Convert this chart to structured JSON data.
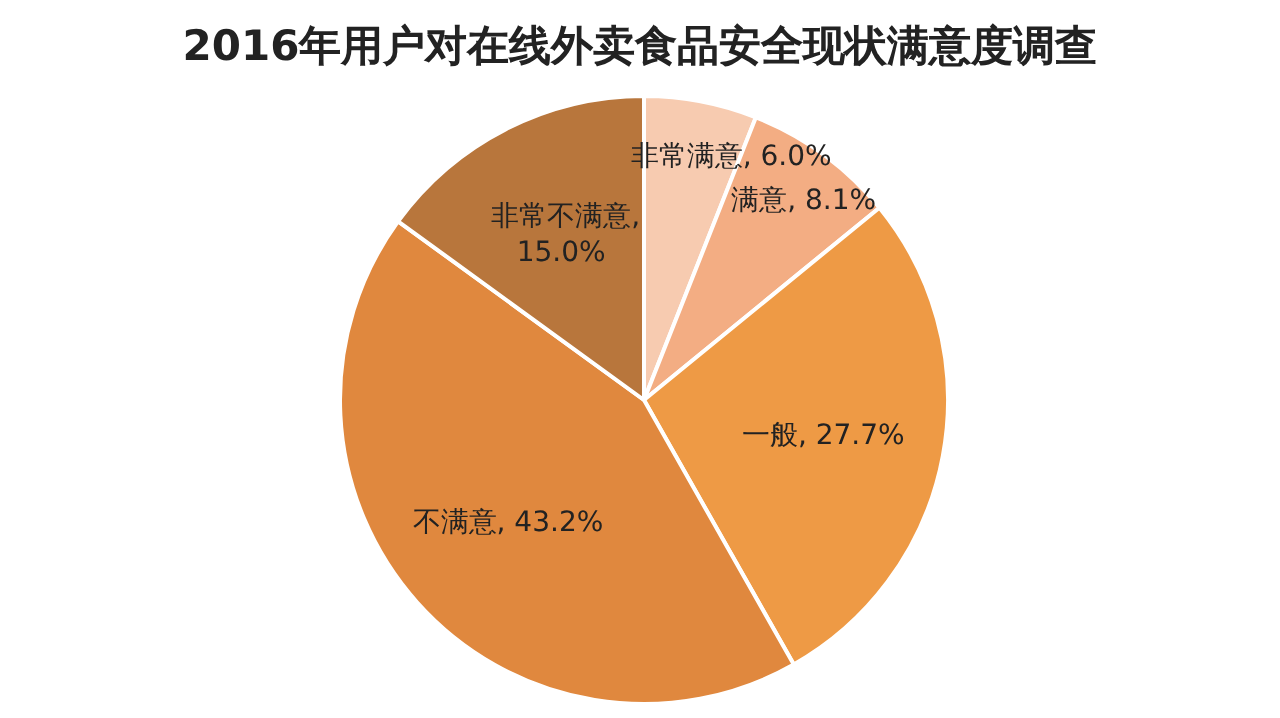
{
  "chart_data": {
    "type": "pie",
    "title": "2016年用户对在线外卖食品安全现状满意度调查",
    "categories": [
      "非常满意",
      "满意",
      "一般",
      "不满意",
      "非常不满意"
    ],
    "values": [
      6.0,
      8.1,
      27.7,
      43.2,
      15.0
    ],
    "colors": [
      "#f7cbb0",
      "#f3ad83",
      "#ee9a45",
      "#e0883e",
      "#b8763c"
    ],
    "value_labels": [
      ", 6.0%",
      ", 8.1%",
      ", 27.7%",
      ", 43.2%",
      ", 15.0%"
    ]
  }
}
